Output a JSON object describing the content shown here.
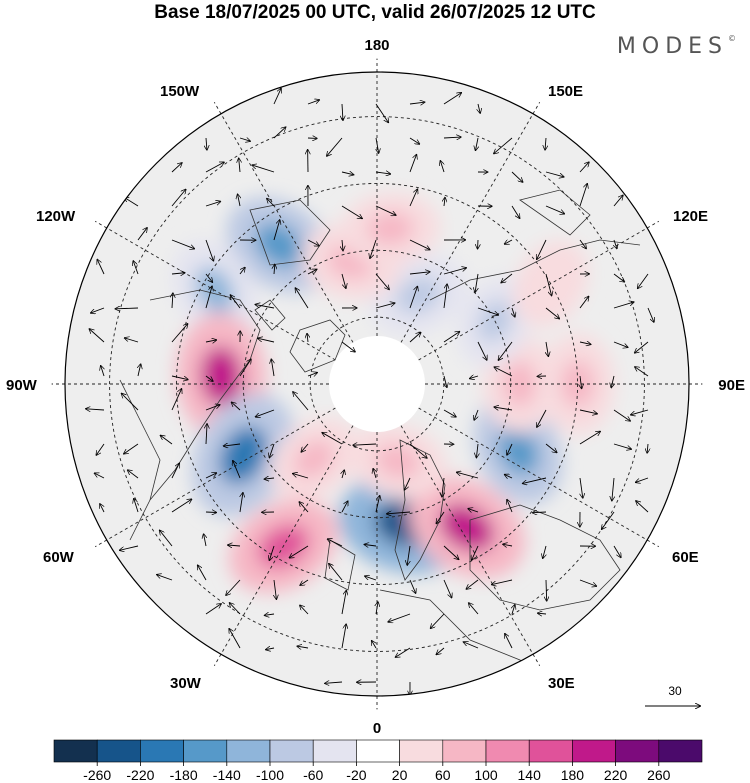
{
  "title": "Base 18/07/2025 00 UTC, valid 26/07/2025 12 UTC",
  "brand": "MODES",
  "brand_mark": "©",
  "longitude_labels": {
    "top": "180",
    "bottom": "0",
    "left": "90W",
    "right": "90E",
    "upper_left_150": "150W",
    "upper_right_150": "150E",
    "left_120": "120W",
    "right_120": "120E",
    "lower_left_60": "60W",
    "lower_right_60": "60E",
    "lower_left_30": "30W",
    "lower_right_30": "30E"
  },
  "vector_reference": {
    "label": "30"
  },
  "colorbar": {
    "tick_labels": [
      "-260",
      "-220",
      "-180",
      "-140",
      "-100",
      "-60",
      "-20",
      "20",
      "60",
      "100",
      "140",
      "180",
      "220",
      "260"
    ],
    "colors": [
      "#13304f",
      "#16548a",
      "#2a78b4",
      "#5699c9",
      "#8fb5da",
      "#bcc9e3",
      "#e4e4f0",
      "#ffffff",
      "#f8dcdf",
      "#f6b7c5",
      "#f08ab0",
      "#e0529a",
      "#c0198a",
      "#7d0b7d",
      "#4b0a6b"
    ]
  },
  "anomaly_blobs": [
    {
      "lat": 68,
      "lon": 155,
      "value": -90
    },
    {
      "lat": 52,
      "lon": -145,
      "value": -150
    },
    {
      "lat": 48,
      "lon": -120,
      "value": -110
    },
    {
      "lat": 55,
      "lon": -93,
      "value": 190
    },
    {
      "lat": 56,
      "lon": -62,
      "value": -210
    },
    {
      "lat": 48,
      "lon": -30,
      "value": 150
    },
    {
      "lat": 58,
      "lon": 12,
      "value": -240
    },
    {
      "lat": 52,
      "lon": 32,
      "value": 190
    },
    {
      "lat": 55,
      "lon": 65,
      "value": -140
    },
    {
      "lat": 58,
      "lon": 90,
      "value": 80
    },
    {
      "lat": 45,
      "lon": 90,
      "value": 90
    },
    {
      "lat": 60,
      "lon": 118,
      "value": -60
    },
    {
      "lat": 62,
      "lon": -168,
      "value": 90
    },
    {
      "lat": 55,
      "lon": 175,
      "value": 80
    },
    {
      "lat": 45,
      "lon": 120,
      "value": 50
    },
    {
      "lat": 68,
      "lon": -40,
      "value": 70
    },
    {
      "lat": 72,
      "lon": 15,
      "value": 80
    }
  ]
}
